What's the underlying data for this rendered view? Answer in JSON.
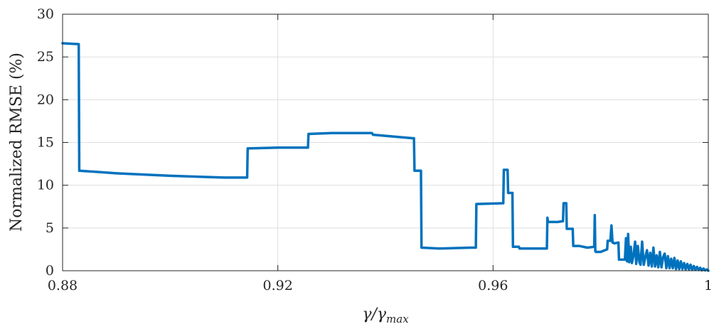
{
  "chart_data": {
    "type": "line",
    "xlabel": "γ/γmax",
    "xlabel_parts": {
      "base": "γ/γ",
      "subscript": "max"
    },
    "ylabel": "Normalized RMSE (%)",
    "xlim": [
      0.88,
      1.0
    ],
    "ylim": [
      0,
      30
    ],
    "xticks": [
      0.88,
      0.92,
      0.96,
      1.0
    ],
    "xtick_labels": [
      "0.88",
      "0.92",
      "0.96",
      "1"
    ],
    "yticks": [
      0,
      5,
      10,
      15,
      20,
      25,
      30
    ],
    "ytick_labels": [
      "0",
      "5",
      "10",
      "15",
      "20",
      "25",
      "30"
    ],
    "grid": true,
    "line_color": "#0072BD",
    "series": [
      {
        "x": [
          0.88,
          0.883,
          0.8831,
          0.89,
          0.9,
          0.91,
          0.9143,
          0.9144,
          0.92,
          0.9256,
          0.9257,
          0.93,
          0.9375,
          0.9377,
          0.945,
          0.9453,
          0.9454,
          0.9466,
          0.9467,
          0.95,
          0.956,
          0.9568,
          0.9569,
          0.9619,
          0.962,
          0.9627,
          0.9628,
          0.9636,
          0.9637,
          0.9648,
          0.9649,
          0.97,
          0.9701,
          0.9702,
          0.9703,
          0.972,
          0.973,
          0.9731,
          0.9736,
          0.9737,
          0.9748,
          0.9749,
          0.976,
          0.9775,
          0.9788,
          0.9789,
          0.979,
          0.9791,
          0.98,
          0.9812,
          0.9813,
          0.9818,
          0.982,
          0.9822,
          0.9823,
          0.9825,
          0.9833,
          0.9834,
          0.9845,
          0.9847,
          0.9849,
          0.9851,
          0.9853,
          0.9856,
          0.9858,
          0.9861,
          0.9864,
          0.9866,
          0.9869,
          0.9872,
          0.9874,
          0.9877,
          0.988,
          0.9883,
          0.9886,
          0.9889,
          0.9892,
          0.9895,
          0.9898,
          0.9901,
          0.9904,
          0.9907,
          0.991,
          0.9913,
          0.9916,
          0.9919,
          0.9922,
          0.9925,
          0.9928,
          0.9931,
          0.9934,
          0.9937,
          0.994,
          0.9943,
          0.9946,
          0.9949,
          0.9952,
          0.9955,
          0.9958,
          0.9961,
          0.9964,
          0.9967,
          0.997,
          0.9973,
          0.9976,
          0.9979,
          0.9982,
          0.9985,
          0.9988,
          0.9991,
          0.9994,
          0.9997,
          1.0
        ],
        "y": [
          26.6,
          26.5,
          11.7,
          11.4,
          11.1,
          10.9,
          10.9,
          14.3,
          14.4,
          14.4,
          16.0,
          16.1,
          16.1,
          15.9,
          15.5,
          15.5,
          11.7,
          11.7,
          2.7,
          2.6,
          2.7,
          2.7,
          7.8,
          7.9,
          11.8,
          11.8,
          9.1,
          9.1,
          2.8,
          2.8,
          2.6,
          2.6,
          6.2,
          5.7,
          5.7,
          5.7,
          5.8,
          7.9,
          7.9,
          4.9,
          4.9,
          2.9,
          2.9,
          2.7,
          2.8,
          6.5,
          2.3,
          2.2,
          2.2,
          2.5,
          3.5,
          3.5,
          5.3,
          3.3,
          3.3,
          3.2,
          3.3,
          1.3,
          1.3,
          3.8,
          1.1,
          4.3,
          1.0,
          2.8,
          0.9,
          1.8,
          3.4,
          0.8,
          2.9,
          1.0,
          0.7,
          3.4,
          0.7,
          1.6,
          2.4,
          0.6,
          2.1,
          0.5,
          2.7,
          0.5,
          1.8,
          0.4,
          2.2,
          0.4,
          1.6,
          2.0,
          0.3,
          1.7,
          0.3,
          1.4,
          0.3,
          1.5,
          0.2,
          1.2,
          0.2,
          1.1,
          0.2,
          0.9,
          0.15,
          0.8,
          0.15,
          0.7,
          0.1,
          0.55,
          0.1,
          0.45,
          0.1,
          0.35,
          0.05,
          0.25,
          0.05,
          0.15,
          0.0
        ]
      }
    ]
  }
}
